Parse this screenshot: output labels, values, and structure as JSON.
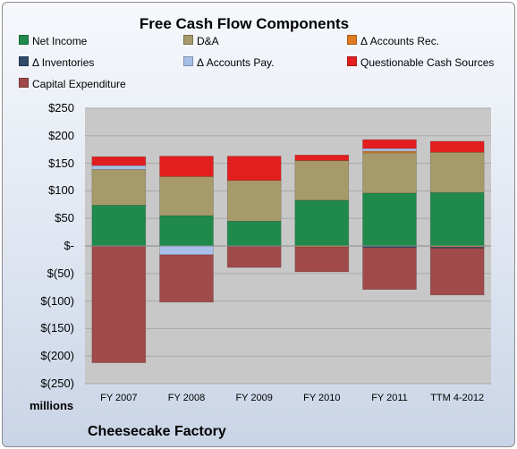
{
  "chart_data": {
    "type": "bar",
    "stacked": true,
    "title": "Free Cash Flow Components",
    "xlabel": "",
    "ylabel": "millions",
    "ylim": [
      -250,
      250
    ],
    "y_ticks": [
      250,
      200,
      150,
      100,
      50,
      0,
      -50,
      -100,
      -150,
      -200,
      -250
    ],
    "y_tick_labels": [
      "$250",
      "$200",
      "$150",
      "$100",
      "$50",
      "$-",
      "$(50)",
      "$(100)",
      "$(150)",
      "$(200)",
      "$(250)"
    ],
    "grid": true,
    "legend_position": "top",
    "categories": [
      "FY 2007",
      "FY 2008",
      "FY 2009",
      "FY 2010",
      "FY 2011",
      "TTM 4-2012"
    ],
    "series": [
      {
        "name": "Net Income",
        "color": "#1f8a4c",
        "values": [
          74,
          55,
          45,
          83,
          96,
          97
        ]
      },
      {
        "name": "D&A",
        "color": "#a69a6a",
        "values": [
          65,
          71,
          74,
          72,
          73,
          73
        ]
      },
      {
        "name": "Δ Accounts Rec.",
        "color": "#e07b20",
        "values": [
          0,
          0,
          0,
          -2,
          3,
          -2
        ]
      },
      {
        "name": "Δ Inventories",
        "color": "#2f4a6a",
        "values": [
          0,
          0,
          0,
          0,
          -3,
          -2
        ]
      },
      {
        "name": "Δ Accounts Pay.",
        "color": "#a8c0e8",
        "values": [
          7,
          -16,
          -1,
          0,
          5,
          0
        ]
      },
      {
        "name": "Questionable Cash Sources",
        "color": "#e21e1e",
        "values": [
          16,
          37,
          44,
          10,
          16,
          20
        ]
      },
      {
        "name": "Capital Expenditure",
        "color": "#a04a4a",
        "values": [
          -212,
          -86,
          -38,
          -45,
          -76,
          -85
        ]
      }
    ]
  },
  "footer": {
    "units_label": "millions",
    "company": "Cheesecake Factory"
  }
}
